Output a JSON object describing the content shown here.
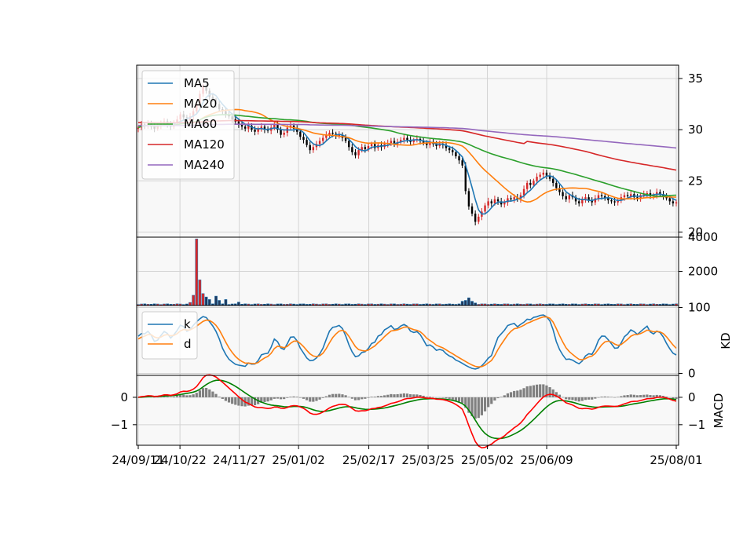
{
  "chart_data": {
    "type": "candlestick",
    "x_tick_labels": [
      "24/09/11",
      "24/10/22",
      "24/11/27",
      "25/01/02",
      "25/02/17",
      "25/03/25",
      "25/05/02",
      "25/06/09",
      "25/08/01"
    ],
    "panels": {
      "price": {
        "y_ticks": [
          20,
          25,
          30,
          35
        ],
        "ylim": [
          19.5,
          36.3
        ],
        "legend_position": "top-left",
        "series": [
          {
            "name": "MA5",
            "color": "#1f77b4"
          },
          {
            "name": "MA20",
            "color": "#ff7f0e"
          },
          {
            "name": "MA60",
            "color": "#2ca02c"
          },
          {
            "name": "MA120",
            "color": "#d62728"
          },
          {
            "name": "MA240",
            "color": "#9467bd"
          }
        ],
        "closes": [
          30.2,
          30.5,
          30.4,
          30.6,
          30.3,
          30.1,
          30.4,
          30.6,
          30.8,
          30.5,
          30.3,
          30.7,
          31.0,
          31.5,
          31.2,
          30.9,
          31.3,
          31.8,
          32.5,
          33.5,
          34.2,
          33.8,
          33.2,
          32.9,
          32.5,
          32.0,
          31.8,
          31.5,
          31.3,
          31.0,
          30.8,
          30.5,
          30.3,
          30.1,
          30.4,
          30.0,
          29.8,
          30.1,
          30.3,
          30.0,
          29.9,
          30.2,
          30.5,
          30.0,
          29.5,
          29.7,
          30.2,
          30.4,
          30.1,
          29.8,
          29.3,
          29.0,
          28.5,
          28.0,
          28.3,
          28.6,
          28.9,
          29.2,
          29.5,
          29.7,
          29.6,
          29.4,
          29.5,
          29.2,
          28.9,
          28.3,
          27.8,
          27.5,
          28.0,
          28.3,
          28.1,
          28.4,
          28.6,
          28.2,
          28.5,
          28.3,
          28.6,
          28.7,
          28.9,
          28.6,
          28.8,
          29.0,
          29.2,
          29.0,
          28.8,
          29.0,
          29.1,
          28.9,
          28.7,
          28.5,
          28.8,
          28.6,
          28.4,
          28.6,
          28.5,
          28.2,
          28.0,
          27.8,
          27.4,
          27.0,
          26.5,
          24.0,
          22.5,
          21.8,
          21.0,
          21.5,
          22.0,
          22.6,
          23.0,
          22.8,
          23.2,
          23.0,
          22.7,
          22.9,
          23.3,
          23.2,
          23.4,
          23.2,
          23.6,
          24.2,
          24.8,
          24.6,
          25.0,
          25.4,
          25.6,
          25.8,
          25.5,
          25.2,
          24.8,
          24.3,
          23.9,
          23.5,
          23.2,
          23.6,
          23.4,
          23.0,
          22.8,
          23.2,
          23.4,
          23.1,
          22.9,
          23.3,
          23.6,
          23.5,
          23.3,
          23.1,
          23.0,
          22.9,
          23.1,
          23.4,
          23.6,
          23.5,
          23.7,
          23.4,
          23.3,
          23.6,
          23.7,
          23.8,
          23.5,
          23.6,
          23.9,
          23.7,
          23.5,
          23.3,
          23.0,
          22.8,
          22.9
        ]
      },
      "volume": {
        "y_ticks": [
          2000,
          4000
        ],
        "ylim": [
          0,
          4000
        ],
        "spikes": [
          {
            "index": 16,
            "value": 180
          },
          {
            "index": 17,
            "value": 600
          },
          {
            "index": 18,
            "value": 3900
          },
          {
            "index": 19,
            "value": 1500
          },
          {
            "index": 20,
            "value": 700
          },
          {
            "index": 21,
            "value": 500
          },
          {
            "index": 22,
            "value": 350
          },
          {
            "index": 24,
            "value": 550
          },
          {
            "index": 25,
            "value": 300
          },
          {
            "index": 27,
            "value": 350
          },
          {
            "index": 31,
            "value": 200
          },
          {
            "index": 100,
            "value": 250
          },
          {
            "index": 101,
            "value": 300
          },
          {
            "index": 102,
            "value": 450
          },
          {
            "index": 103,
            "value": 250
          },
          {
            "index": 104,
            "value": 150
          }
        ]
      },
      "kd": {
        "ylabel": "KD",
        "y_ticks": [
          0,
          100
        ],
        "ylim": [
          -3,
          103
        ],
        "legend_position": "top-left",
        "series": [
          {
            "name": "k",
            "color": "#1f77b4"
          },
          {
            "name": "d",
            "color": "#ff7f0e"
          }
        ]
      },
      "macd": {
        "ylabel": "MACD",
        "y_ticks": [
          -1,
          0
        ],
        "ylim": [
          -1.75,
          0.8
        ],
        "histogram_color": "#808080",
        "series": [
          {
            "name": "",
            "color": "#ff0000"
          },
          {
            "name": "",
            "color": "#008000"
          }
        ]
      }
    }
  }
}
